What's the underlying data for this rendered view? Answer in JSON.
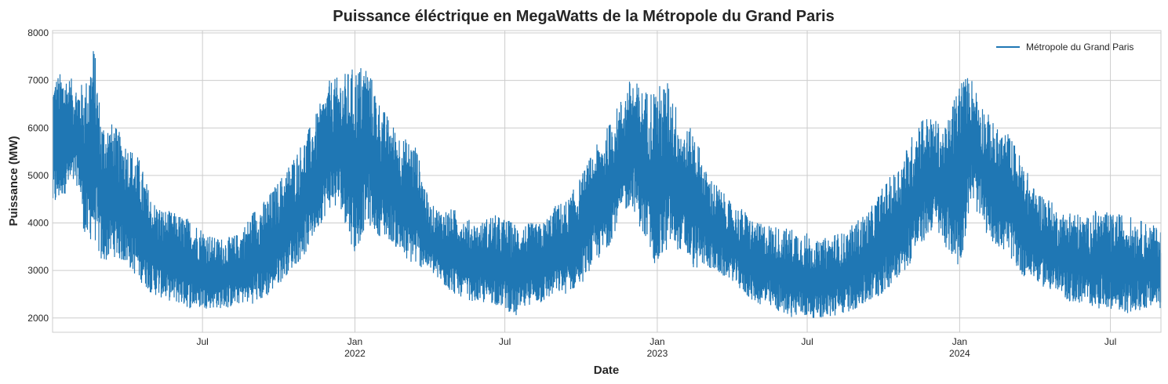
{
  "chart_data": {
    "type": "line",
    "title": "Puissance éléctrique en MegaWatts de la Métropole du Grand Paris",
    "xlabel": "Date",
    "ylabel": "Puissance (MW)",
    "xlim": [
      "2021-01-01",
      "2024-08-31"
    ],
    "ylim": [
      1700,
      8050
    ],
    "y_ticks": [
      2000,
      3000,
      4000,
      5000,
      6000,
      7000,
      8000
    ],
    "x_ticks": [
      {
        "date": "2021-07-01",
        "label": "Jul",
        "sublabel": ""
      },
      {
        "date": "2022-01-01",
        "label": "Jan",
        "sublabel": "2022"
      },
      {
        "date": "2022-07-01",
        "label": "Jul",
        "sublabel": ""
      },
      {
        "date": "2023-01-01",
        "label": "Jan",
        "sublabel": "2023"
      },
      {
        "date": "2023-07-01",
        "label": "Jul",
        "sublabel": ""
      },
      {
        "date": "2024-01-01",
        "label": "Jan",
        "sublabel": "2024"
      },
      {
        "date": "2024-07-01",
        "label": "Jul",
        "sublabel": ""
      }
    ],
    "grid": true,
    "legend_position": "top-right",
    "series": [
      {
        "name": "Métropole du Grand Paris",
        "color": "#1f77b4",
        "envelope": {
          "x": [
            "2021-01-01",
            "2021-01-15",
            "2021-02-01",
            "2021-02-10",
            "2021-02-20",
            "2021-03-01",
            "2021-03-15",
            "2021-04-01",
            "2021-04-15",
            "2021-05-01",
            "2021-05-15",
            "2021-06-01",
            "2021-06-15",
            "2021-07-01",
            "2021-07-15",
            "2021-08-01",
            "2021-08-15",
            "2021-09-01",
            "2021-09-15",
            "2021-10-01",
            "2021-10-15",
            "2021-11-01",
            "2021-11-15",
            "2021-12-01",
            "2021-12-15",
            "2022-01-01",
            "2022-01-15",
            "2022-02-01",
            "2022-02-15",
            "2022-03-01",
            "2022-03-15",
            "2022-04-01",
            "2022-04-15",
            "2022-05-01",
            "2022-05-15",
            "2022-06-01",
            "2022-06-15",
            "2022-07-01",
            "2022-07-15",
            "2022-08-01",
            "2022-08-15",
            "2022-09-01",
            "2022-09-15",
            "2022-10-01",
            "2022-10-15",
            "2022-11-01",
            "2022-11-15",
            "2022-12-01",
            "2022-12-15",
            "2023-01-01",
            "2023-01-15",
            "2023-02-01",
            "2023-02-15",
            "2023-03-01",
            "2023-03-15",
            "2023-04-01",
            "2023-04-15",
            "2023-05-01",
            "2023-05-15",
            "2023-06-01",
            "2023-06-15",
            "2023-07-01",
            "2023-07-15",
            "2023-08-01",
            "2023-08-15",
            "2023-09-01",
            "2023-09-15",
            "2023-10-01",
            "2023-10-15",
            "2023-11-01",
            "2023-11-15",
            "2023-12-01",
            "2023-12-15",
            "2024-01-01",
            "2024-01-15",
            "2024-02-01",
            "2024-02-15",
            "2024-03-01",
            "2024-03-15",
            "2024-04-01",
            "2024-04-15",
            "2024-05-01",
            "2024-05-15",
            "2024-06-01",
            "2024-06-15",
            "2024-07-01",
            "2024-07-15",
            "2024-08-01",
            "2024-08-15",
            "2024-08-31"
          ],
          "y_max": [
            7100,
            7200,
            6900,
            7000,
            7800,
            6200,
            6100,
            5700,
            5400,
            4500,
            4300,
            4200,
            4100,
            3900,
            3700,
            3700,
            3800,
            4300,
            4500,
            4900,
            5300,
            5800,
            6300,
            7000,
            7100,
            7300,
            7400,
            6500,
            6100,
            5800,
            5700,
            4400,
            4300,
            4300,
            4100,
            4000,
            4200,
            4100,
            4000,
            4000,
            4000,
            4400,
            4500,
            5000,
            5500,
            6000,
            6500,
            7100,
            6800,
            6900,
            7000,
            6000,
            6000,
            5100,
            4800,
            4400,
            4300,
            4000,
            4000,
            3900,
            3900,
            3800,
            3600,
            3800,
            3800,
            4100,
            4300,
            4800,
            5100,
            5700,
            6300,
            6200,
            6000,
            7100,
            7100,
            6400,
            6000,
            5900,
            5400,
            4700,
            4600,
            4200,
            4300,
            4100,
            4300,
            4200,
            4200,
            4100,
            4000,
            3900
          ],
          "y_min": [
            4200,
            4600,
            4800,
            3500,
            3700,
            3100,
            3300,
            3100,
            2800,
            2500,
            2400,
            2300,
            2200,
            2200,
            2200,
            2200,
            2300,
            2300,
            2400,
            2700,
            3000,
            3300,
            3800,
            4300,
            4300,
            3300,
            4000,
            3700,
            3600,
            3200,
            3100,
            3000,
            2700,
            2500,
            2400,
            2300,
            2300,
            2200,
            2000,
            2300,
            2300,
            2500,
            2500,
            2700,
            3100,
            3400,
            4000,
            4400,
            3700,
            3000,
            3500,
            3400,
            3000,
            3100,
            2900,
            2800,
            2500,
            2300,
            2200,
            2100,
            2000,
            2000,
            2000,
            2000,
            2100,
            2200,
            2300,
            2500,
            2800,
            3100,
            3500,
            3900,
            3500,
            3000,
            4500,
            3800,
            3500,
            3300,
            2900,
            2800,
            2600,
            2500,
            2300,
            2300,
            2200,
            2200,
            2100,
            2100,
            2200,
            2200
          ]
        }
      }
    ]
  }
}
